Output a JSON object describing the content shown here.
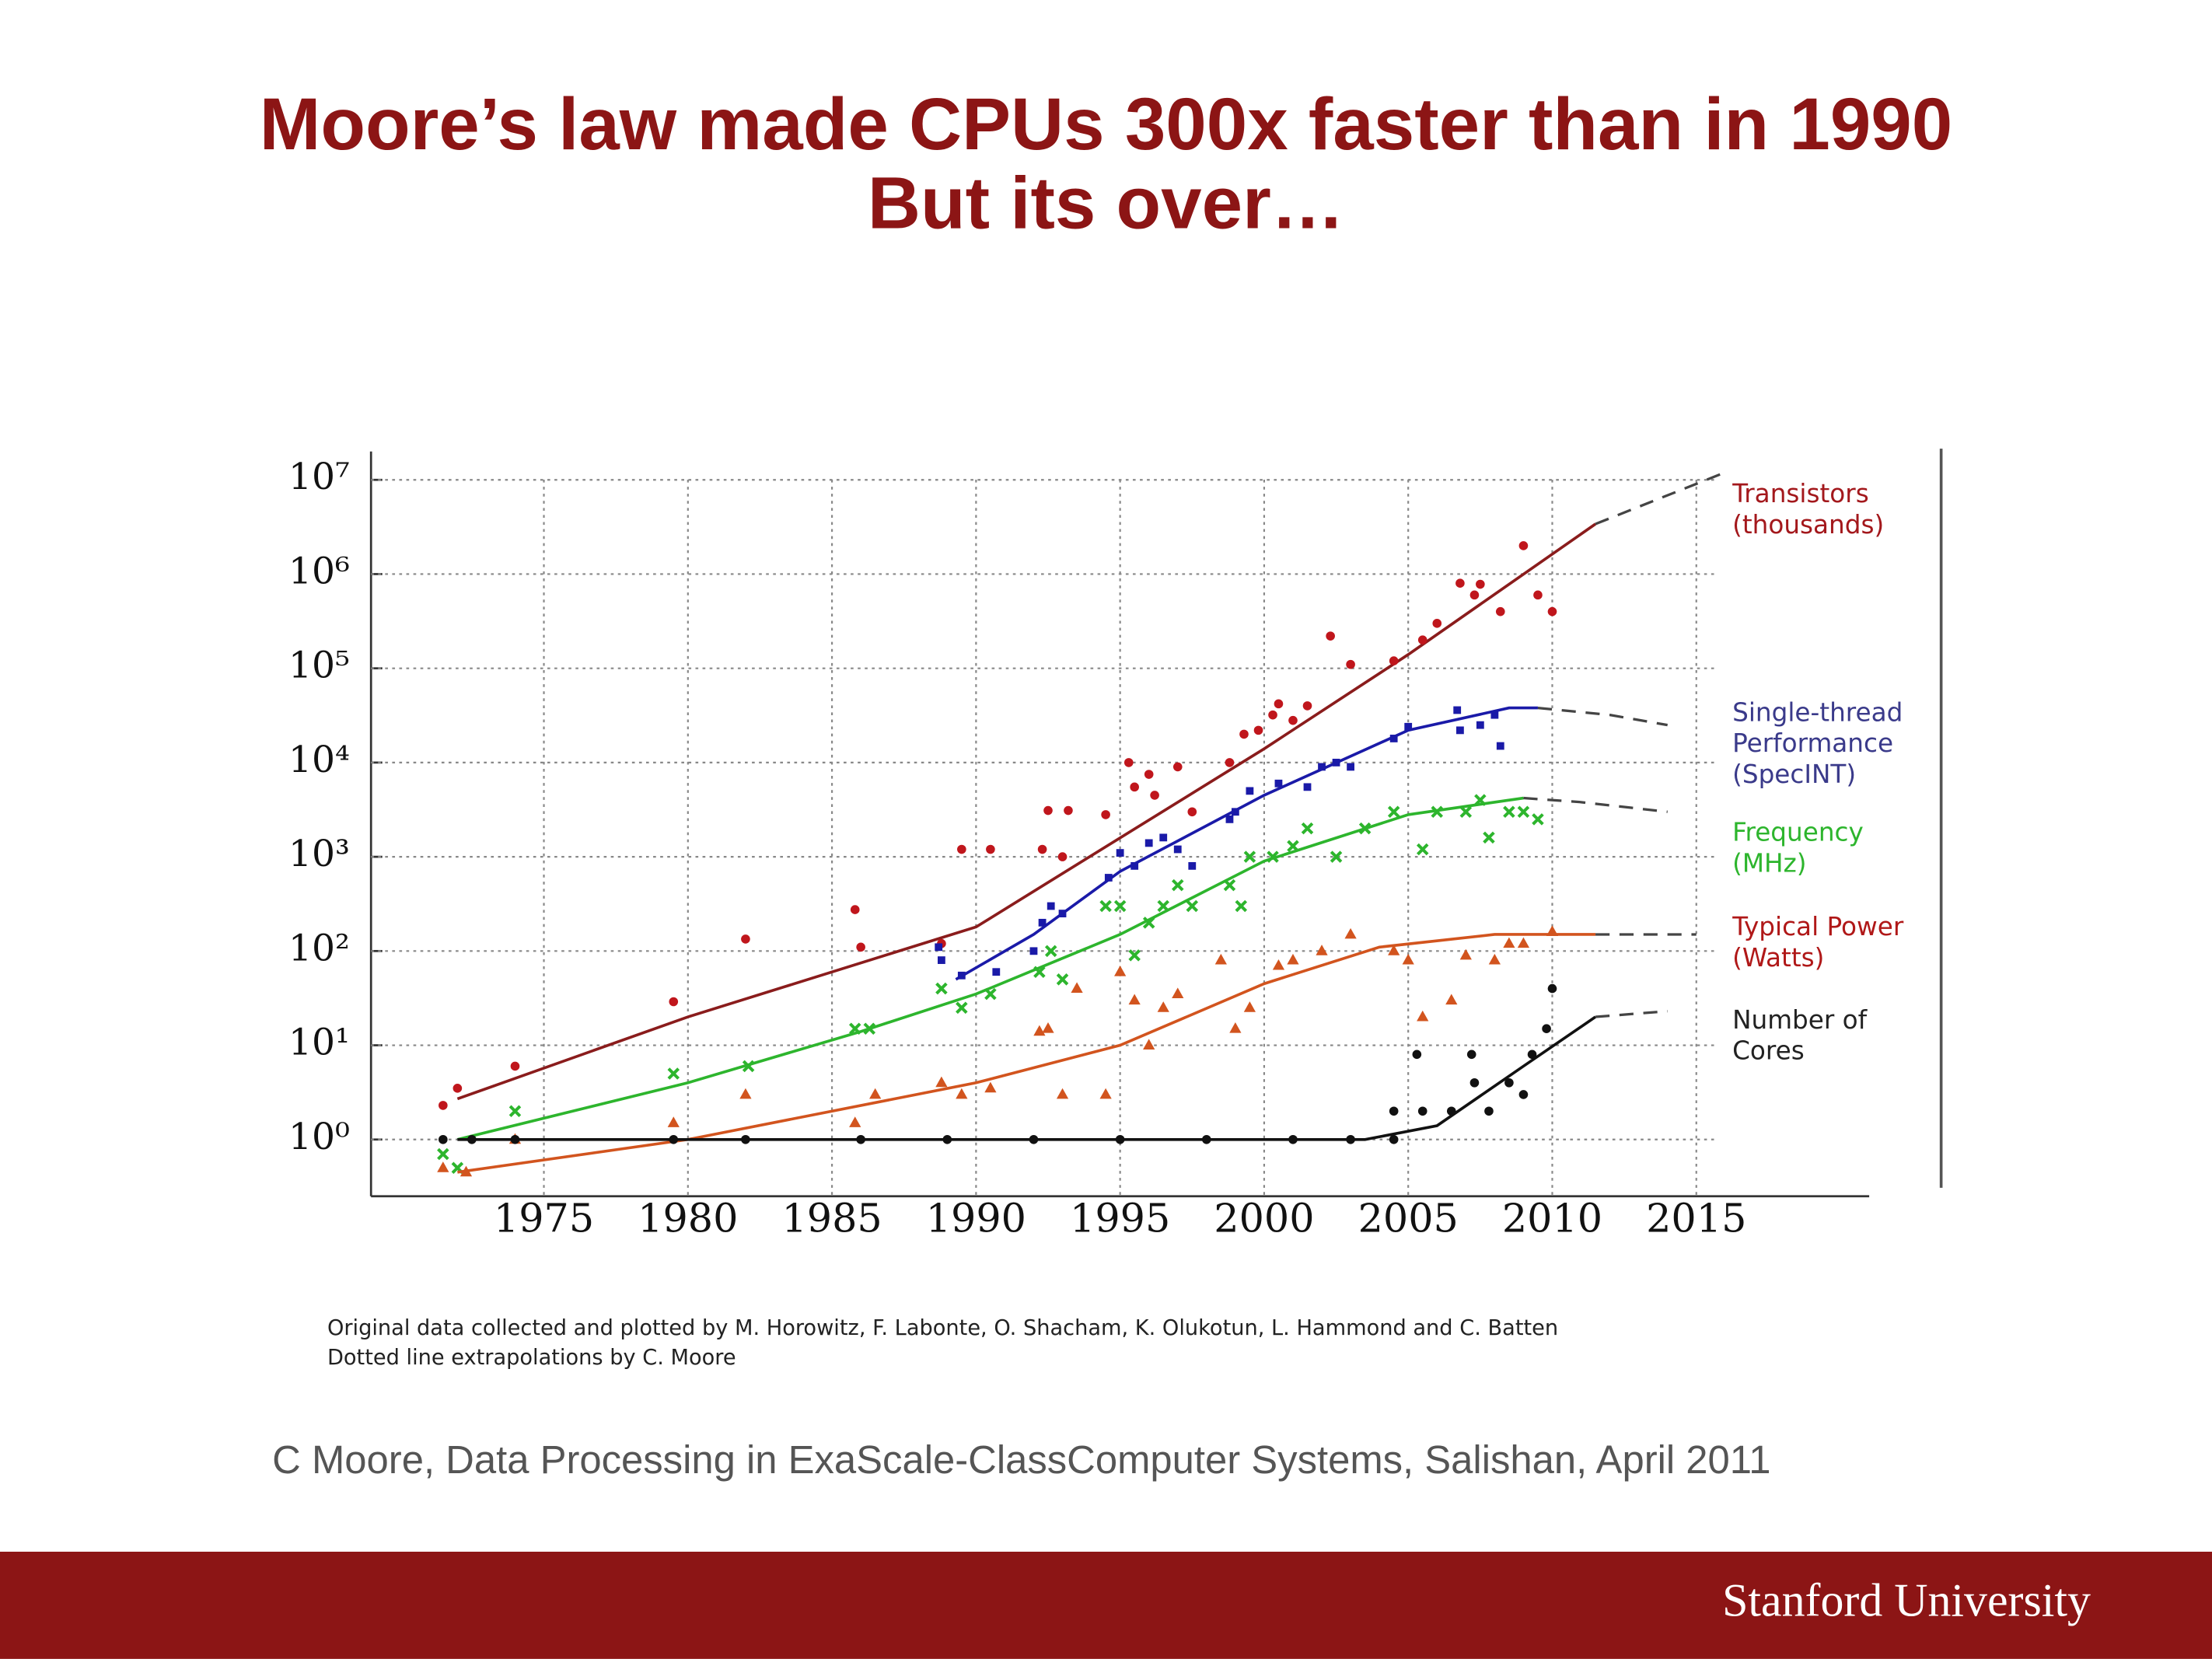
{
  "slide": {
    "title": [
      "Moore’s law made CPUs 300x faster than in 1990",
      "But its over…"
    ]
  },
  "chart_data": {
    "type": "scatter",
    "log_scale_y": true,
    "grid": true,
    "legend_position": "right",
    "xlim": [
      1969,
      2021
    ],
    "ylim": [
      0.25,
      20000000
    ],
    "xticks": [
      1975,
      1980,
      1985,
      1990,
      1995,
      2000,
      2005,
      2010,
      2015
    ],
    "yticks": [
      {
        "value": 1,
        "label": "10⁰"
      },
      {
        "value": 10,
        "label": "10¹"
      },
      {
        "value": 100,
        "label": "10²"
      },
      {
        "value": 1000,
        "label": "10³"
      },
      {
        "value": 10000,
        "label": "10⁴"
      },
      {
        "value": 100000,
        "label": "10⁵"
      },
      {
        "value": 1000000,
        "label": "10⁶"
      },
      {
        "value": 10000000,
        "label": "10⁷"
      }
    ],
    "series": [
      {
        "name": "Transistors (thousands)",
        "color": "#c0161c",
        "label_color": "#a3181c",
        "marker": "circle",
        "x": [
          1971.5,
          1972,
          1974,
          1979.5,
          1982,
          1985.8,
          1986,
          1988.8,
          1989.5,
          1990.5,
          1992.3,
          1992.5,
          1993.2,
          1993,
          1994.5,
          1995.3,
          1995.5,
          1996,
          1996.2,
          1997,
          1997.5,
          1998.8,
          1999.3,
          1999.8,
          2000.3,
          2000.5,
          2001,
          2001.5,
          2002.3,
          2003,
          2004.5,
          2005.5,
          2006,
          2006.8,
          2007.3,
          2007.5,
          2008.2,
          2009,
          2009.5,
          2010
        ],
        "values": [
          2.3,
          3.5,
          6,
          29,
          134,
          275,
          110,
          120,
          1200,
          1200,
          1200,
          3100,
          3100,
          1000,
          2800,
          10000,
          5500,
          7500,
          4500,
          9000,
          3000,
          10000,
          20000,
          22000,
          32000,
          42000,
          28000,
          40000,
          220000,
          110000,
          120000,
          200000,
          300000,
          800000,
          600000,
          780000,
          400000,
          2000000,
          600000,
          400000
        ],
        "fit": {
          "x": [
            1972,
            1980,
            1990,
            2000,
            2005,
            2011.5
          ],
          "y": [
            2.7,
            20,
            180,
            14000,
            140000,
            3400000
          ]
        },
        "extrapolation": {
          "x": [
            2011.5,
            2016
          ],
          "y": [
            3400000,
            12000000
          ]
        }
      },
      {
        "name": "Single-thread Performance (SpecINT)",
        "color": "#1a1aa8",
        "label_color": "#3a3a8a",
        "marker": "square",
        "x": [
          1988.7,
          1988.8,
          1989.5,
          1990.7,
          1992,
          1992.3,
          1992.6,
          1993,
          1994.6,
          1995,
          1995.5,
          1996,
          1996.5,
          1997,
          1997.5,
          1998.8,
          1999,
          1999.5,
          2000.5,
          2001.5,
          2002,
          2002.5,
          2003,
          2004.5,
          2005,
          2006.7,
          2006.8,
          2007.5,
          2008,
          2008.2
        ],
        "values": [
          110,
          80,
          55,
          60,
          100,
          200,
          300,
          250,
          600,
          1100,
          800,
          1400,
          1600,
          1200,
          800,
          2500,
          3000,
          5000,
          6000,
          5500,
          9000,
          10000,
          9000,
          18000,
          24000,
          36000,
          22000,
          25000,
          32000,
          15000
        ],
        "fit": {
          "x": [
            1989.3,
            1992,
            1995,
            2000,
            2005,
            2008.5,
            2009.5
          ],
          "y": [
            50,
            150,
            700,
            4500,
            22000,
            38000,
            38000
          ]
        },
        "extrapolation": {
          "x": [
            2009.5,
            2012,
            2014
          ],
          "y": [
            38000,
            32000,
            25000
          ]
        }
      },
      {
        "name": "Frequency (MHz)",
        "color": "#2db52d",
        "label_color": "#2db52d",
        "marker": "x",
        "x": [
          1971.5,
          1972,
          1974,
          1979.5,
          1982.1,
          1985.8,
          1986.3,
          1988.8,
          1989.5,
          1990.5,
          1992.2,
          1992.6,
          1993,
          1994.5,
          1995,
          1995.5,
          1996,
          1996.5,
          1997,
          1997.5,
          1998.8,
          1999.2,
          1999.5,
          2000.3,
          2001,
          2001.5,
          2002.5,
          2003.5,
          2004.5,
          2005.5,
          2006,
          2007,
          2007.5,
          2007.8,
          2008.5,
          2009,
          2009.5
        ],
        "values": [
          0.7,
          0.5,
          2,
          5,
          6,
          15,
          15,
          40,
          25,
          35,
          60,
          100,
          50,
          300,
          300,
          90,
          200,
          300,
          500,
          300,
          500,
          300,
          1000,
          1000,
          1300,
          2000,
          1000,
          2000,
          3000,
          1200,
          3000,
          3000,
          4000,
          1600,
          3000,
          3000,
          2500
        ],
        "fit": {
          "x": [
            1972,
            1980,
            1986,
            1990,
            1995,
            2000,
            2005,
            2009
          ],
          "y": [
            1,
            4,
            14,
            35,
            150,
            900,
            2800,
            4200
          ]
        },
        "extrapolation": {
          "x": [
            2009,
            2011,
            2014
          ],
          "y": [
            4200,
            3800,
            3000
          ]
        }
      },
      {
        "name": "Typical Power (Watts)",
        "color": "#d2541e",
        "label_color": "#b01818",
        "marker": "triangle",
        "x": [
          1971.5,
          1972.3,
          1974,
          1979.5,
          1982,
          1985.8,
          1986.5,
          1988.8,
          1989.5,
          1990.5,
          1992.2,
          1992.5,
          1993,
          1993.5,
          1994.5,
          1995,
          1995.5,
          1996,
          1996.5,
          1997,
          1998.5,
          1999,
          1999.5,
          2000.5,
          2001,
          2002,
          2003,
          2004.5,
          2005,
          2005.5,
          2006.5,
          2007,
          2008,
          2008.5,
          2009,
          2010
        ],
        "values": [
          0.5,
          0.45,
          1,
          1.5,
          3,
          1.5,
          3,
          4,
          3,
          3.5,
          14,
          15,
          3,
          40,
          3,
          60,
          30,
          10,
          25,
          35,
          80,
          15,
          25,
          70,
          80,
          100,
          150,
          100,
          80,
          20,
          30,
          90,
          80,
          120,
          120,
          160
        ],
        "fit": {
          "x": [
            1972,
            1980,
            1990,
            1995,
            2000,
            2004,
            2008,
            2011.5
          ],
          "y": [
            0.45,
            1,
            4,
            10,
            45,
            110,
            150,
            150
          ]
        },
        "extrapolation": {
          "x": [
            2011.5,
            2015
          ],
          "y": [
            150,
            150
          ]
        }
      },
      {
        "name": "Number of Cores",
        "color": "#111111",
        "label_color": "#222222",
        "marker": "circle",
        "x": [
          1971.5,
          1972.5,
          1974,
          1979.5,
          1982,
          1986,
          1989,
          1992,
          1995,
          1998,
          2001,
          2003,
          2004.5,
          2004.5,
          2005.3,
          2005.5,
          2006.5,
          2007.2,
          2007.3,
          2007.8,
          2008.5,
          2009,
          2009.3,
          2009.8,
          2010
        ],
        "values": [
          1,
          1,
          1,
          1,
          1,
          1,
          1,
          1,
          1,
          1,
          1,
          1,
          1,
          2,
          8,
          2,
          2,
          8,
          4,
          2,
          4,
          3,
          8,
          15,
          40
        ],
        "fit": {
          "x": [
            1972,
            2003.5,
            2006,
            2009,
            2011.5
          ],
          "y": [
            1,
            1,
            1.4,
            6,
            20
          ]
        },
        "extrapolation": {
          "x": [
            2011.5,
            2014
          ],
          "y": [
            20,
            23
          ]
        }
      }
    ],
    "credits": [
      "Original data collected and plotted by M. Horowitz, F. Labonte, O. Shacham, K. Olukotun, L. Hammond and C. Batten",
      "Dotted line extrapolations by C. Moore"
    ]
  },
  "citation": "C Moore, Data Processing in ExaScale-ClassComputer Systems, Salishan, April 2011",
  "footer": "Stanford University"
}
